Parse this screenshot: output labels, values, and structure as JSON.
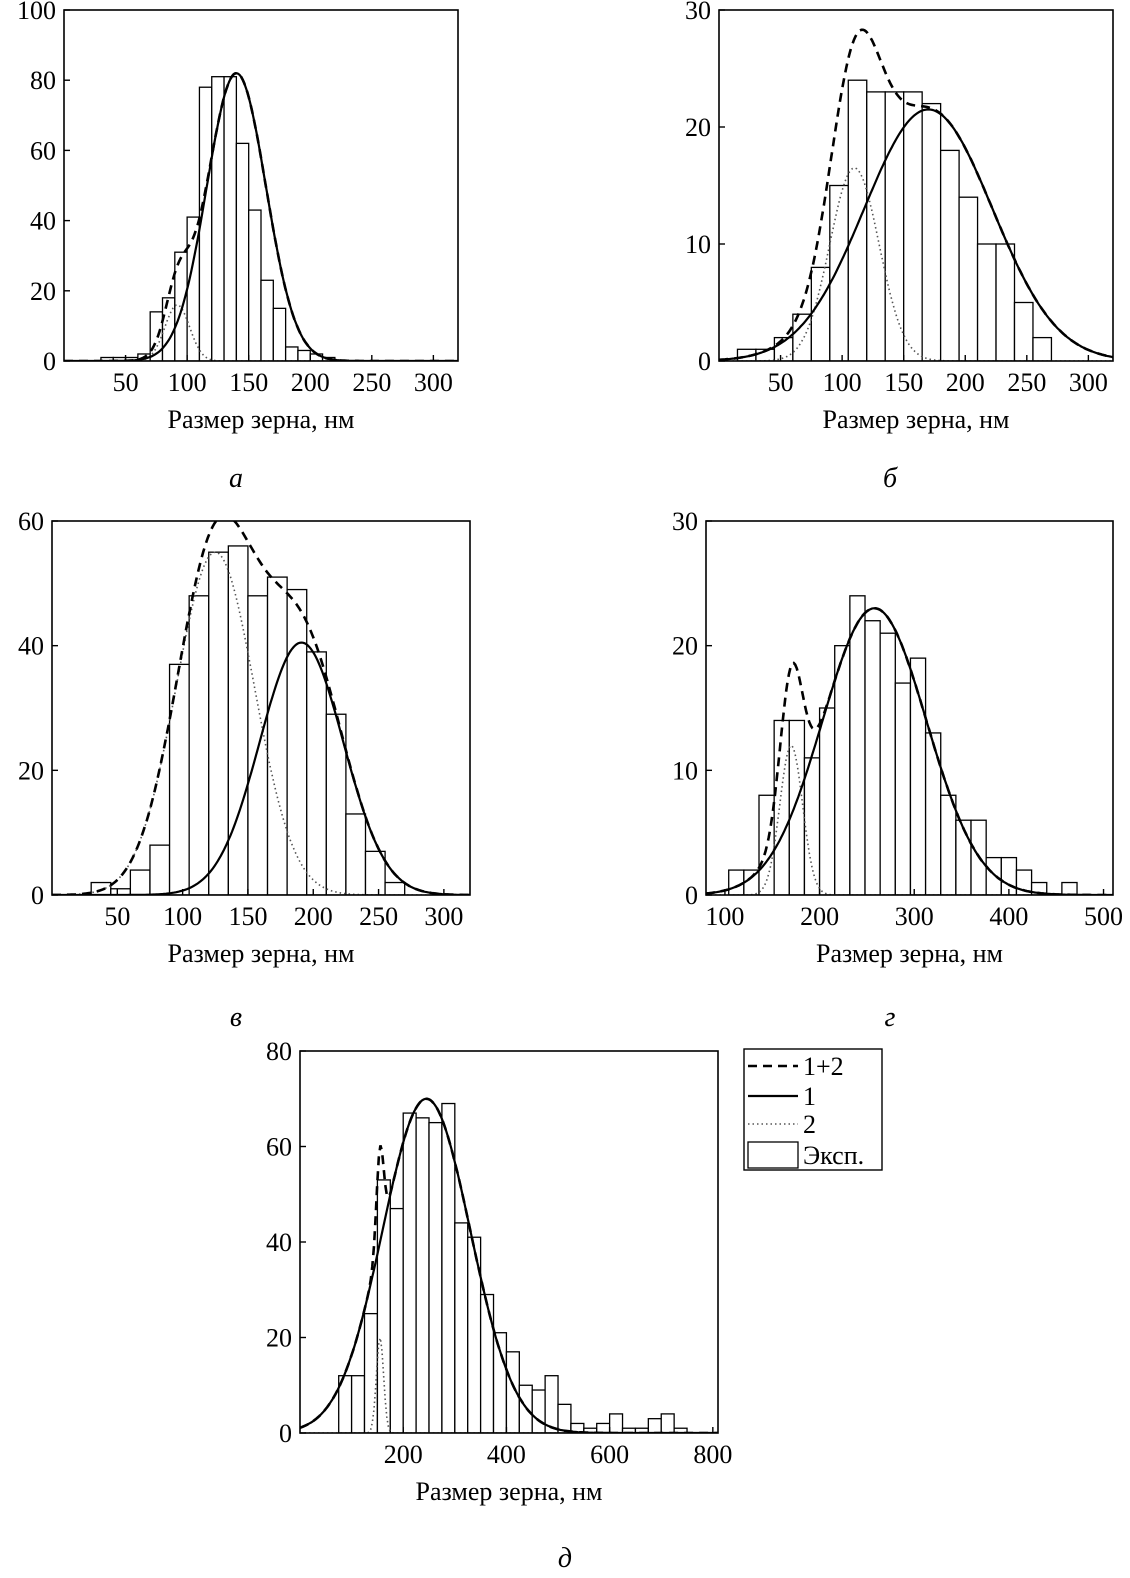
{
  "chart_data": [
    {
      "panel_label": "а",
      "type": "bar",
      "xlabel": "Размер зерна, нм",
      "xlim": [
        0,
        320
      ],
      "ylim": [
        0,
        100
      ],
      "xticks": [
        50,
        100,
        150,
        200,
        250,
        300
      ],
      "yticks": [
        0,
        20,
        40,
        60,
        80,
        100
      ],
      "bin_width": 10,
      "bins": [
        {
          "x": 30,
          "v": 1
        },
        {
          "x": 40,
          "v": 1
        },
        {
          "x": 50,
          "v": 1
        },
        {
          "x": 60,
          "v": 2
        },
        {
          "x": 70,
          "v": 14
        },
        {
          "x": 80,
          "v": 18
        },
        {
          "x": 90,
          "v": 31
        },
        {
          "x": 100,
          "v": 41
        },
        {
          "x": 110,
          "v": 78
        },
        {
          "x": 120,
          "v": 81
        },
        {
          "x": 130,
          "v": 81
        },
        {
          "x": 140,
          "v": 62
        },
        {
          "x": 150,
          "v": 43
        },
        {
          "x": 160,
          "v": 23
        },
        {
          "x": 170,
          "v": 15
        },
        {
          "x": 180,
          "v": 4
        },
        {
          "x": 190,
          "v": 3
        },
        {
          "x": 200,
          "v": 2
        },
        {
          "x": 210,
          "v": 1
        }
      ],
      "fits": {
        "c1": {
          "A": 82,
          "mu": 140,
          "sigma": 24
        },
        "c2": {
          "A": 16,
          "mu": 92,
          "sigma": 10
        }
      }
    },
    {
      "panel_label": "б",
      "type": "bar",
      "xlabel": "Размер зерна, нм",
      "xlim": [
        0,
        320
      ],
      "ylim": [
        0,
        30
      ],
      "xticks": [
        50,
        100,
        150,
        200,
        250,
        300
      ],
      "yticks": [
        0,
        10,
        20,
        30
      ],
      "bin_width": 15,
      "bins": [
        {
          "x": 15,
          "v": 1
        },
        {
          "x": 30,
          "v": 1
        },
        {
          "x": 45,
          "v": 2
        },
        {
          "x": 60,
          "v": 4
        },
        {
          "x": 75,
          "v": 8
        },
        {
          "x": 90,
          "v": 15
        },
        {
          "x": 105,
          "v": 24
        },
        {
          "x": 120,
          "v": 23
        },
        {
          "x": 135,
          "v": 23
        },
        {
          "x": 150,
          "v": 23
        },
        {
          "x": 165,
          "v": 22
        },
        {
          "x": 180,
          "v": 18
        },
        {
          "x": 195,
          "v": 14
        },
        {
          "x": 210,
          "v": 10
        },
        {
          "x": 225,
          "v": 10
        },
        {
          "x": 240,
          "v": 5
        },
        {
          "x": 255,
          "v": 2
        }
      ],
      "fits": {
        "c1": {
          "A": 21.5,
          "mu": 170,
          "sigma": 52
        },
        "c2": {
          "A": 16.5,
          "mu": 110,
          "sigma": 20
        }
      }
    },
    {
      "panel_label": "в",
      "type": "bar",
      "xlabel": "Размер зерна, нм",
      "xlim": [
        0,
        320
      ],
      "ylim": [
        0,
        60
      ],
      "xticks": [
        50,
        100,
        150,
        200,
        250,
        300
      ],
      "yticks": [
        0,
        20,
        40,
        60
      ],
      "bin_width": 15,
      "bins": [
        {
          "x": 30,
          "v": 2
        },
        {
          "x": 45,
          "v": 1
        },
        {
          "x": 60,
          "v": 4
        },
        {
          "x": 75,
          "v": 8
        },
        {
          "x": 90,
          "v": 37
        },
        {
          "x": 105,
          "v": 48
        },
        {
          "x": 120,
          "v": 55
        },
        {
          "x": 135,
          "v": 56
        },
        {
          "x": 150,
          "v": 48
        },
        {
          "x": 165,
          "v": 51
        },
        {
          "x": 180,
          "v": 49
        },
        {
          "x": 195,
          "v": 39
        },
        {
          "x": 210,
          "v": 29
        },
        {
          "x": 225,
          "v": 13
        },
        {
          "x": 240,
          "v": 7
        },
        {
          "x": 255,
          "v": 2
        }
      ],
      "fits": {
        "c1": {
          "A": 40.5,
          "mu": 191,
          "sigma": 32
        },
        "c2": {
          "A": 55,
          "mu": 125,
          "sigma": 30
        }
      }
    },
    {
      "panel_label": "г",
      "type": "bar",
      "xlabel": "Размер зерна, нм",
      "xlim": [
        80,
        510
      ],
      "ylim": [
        0,
        30
      ],
      "xticks": [
        100,
        200,
        300,
        400,
        500
      ],
      "yticks": [
        0,
        10,
        20,
        30
      ],
      "bin_width": 16,
      "bins": [
        {
          "x": 104,
          "v": 2
        },
        {
          "x": 120,
          "v": 2
        },
        {
          "x": 136,
          "v": 8
        },
        {
          "x": 152,
          "v": 14
        },
        {
          "x": 168,
          "v": 14
        },
        {
          "x": 184,
          "v": 11
        },
        {
          "x": 200,
          "v": 15
        },
        {
          "x": 216,
          "v": 20
        },
        {
          "x": 232,
          "v": 24
        },
        {
          "x": 248,
          "v": 22
        },
        {
          "x": 264,
          "v": 21
        },
        {
          "x": 280,
          "v": 17
        },
        {
          "x": 296,
          "v": 19
        },
        {
          "x": 312,
          "v": 13
        },
        {
          "x": 328,
          "v": 8
        },
        {
          "x": 344,
          "v": 6
        },
        {
          "x": 360,
          "v": 6
        },
        {
          "x": 376,
          "v": 3
        },
        {
          "x": 392,
          "v": 3
        },
        {
          "x": 408,
          "v": 2
        },
        {
          "x": 424,
          "v": 1
        },
        {
          "x": 440,
          "v": 0
        },
        {
          "x": 456,
          "v": 1
        }
      ],
      "fits": {
        "c1": {
          "A": 23,
          "mu": 258,
          "sigma": 55
        },
        "c2": {
          "A": 12,
          "mu": 170,
          "sigma": 12
        }
      }
    },
    {
      "panel_label": "д",
      "type": "bar",
      "xlabel": "Размер зерна, нм",
      "xlim": [
        0,
        810
      ],
      "ylim": [
        0,
        80
      ],
      "xticks": [
        200,
        400,
        600,
        800
      ],
      "yticks": [
        0,
        20,
        40,
        60,
        80
      ],
      "bin_width": 25,
      "bins": [
        {
          "x": 75,
          "v": 12
        },
        {
          "x": 100,
          "v": 12
        },
        {
          "x": 125,
          "v": 25
        },
        {
          "x": 150,
          "v": 53
        },
        {
          "x": 175,
          "v": 47
        },
        {
          "x": 200,
          "v": 67
        },
        {
          "x": 225,
          "v": 66
        },
        {
          "x": 250,
          "v": 65
        },
        {
          "x": 275,
          "v": 69
        },
        {
          "x": 300,
          "v": 44
        },
        {
          "x": 325,
          "v": 41
        },
        {
          "x": 350,
          "v": 29
        },
        {
          "x": 375,
          "v": 21
        },
        {
          "x": 400,
          "v": 17
        },
        {
          "x": 425,
          "v": 10
        },
        {
          "x": 450,
          "v": 9
        },
        {
          "x": 475,
          "v": 12
        },
        {
          "x": 500,
          "v": 6
        },
        {
          "x": 525,
          "v": 2
        },
        {
          "x": 550,
          "v": 1
        },
        {
          "x": 575,
          "v": 2
        },
        {
          "x": 600,
          "v": 4
        },
        {
          "x": 625,
          "v": 1
        },
        {
          "x": 650,
          "v": 1
        },
        {
          "x": 675,
          "v": 3
        },
        {
          "x": 700,
          "v": 4
        },
        {
          "x": 725,
          "v": 1
        }
      ],
      "fits": {
        "c1": {
          "A": 70,
          "mu": 245,
          "sigma": 85
        },
        "c2": {
          "A": 20,
          "mu": 155,
          "sigma": 7
        }
      }
    }
  ],
  "legend": {
    "items": [
      {
        "label": "1+2",
        "style": "dashed"
      },
      {
        "label": "1",
        "style": "solid"
      },
      {
        "label": "2",
        "style": "dotted"
      },
      {
        "label": "Эксп.",
        "style": "box"
      }
    ]
  }
}
